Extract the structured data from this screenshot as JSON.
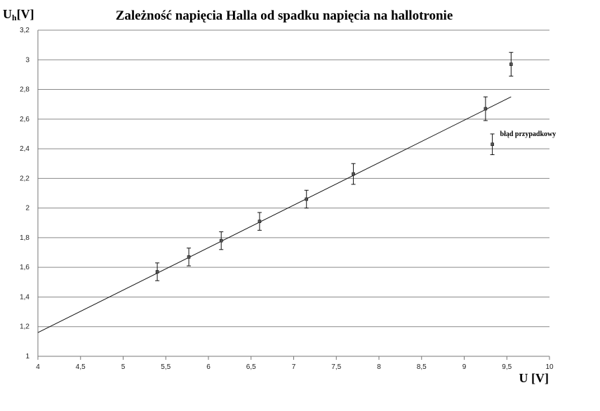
{
  "chart_data": {
    "type": "scatter",
    "title": "Zależność napięcia Halla od spadku napięcia na hallotronie",
    "xlabel": "U [V]",
    "ylabel_main": "U",
    "ylabel_sub": "h",
    "ylabel_unit": "[V]",
    "xlim": [
      4,
      10
    ],
    "ylim": [
      1,
      3.2
    ],
    "grid": "horizontal",
    "x_ticks": [
      "4",
      "4,5",
      "5",
      "5,5",
      "6",
      "6,5",
      "7",
      "7,5",
      "8",
      "8,5",
      "9",
      "9,5",
      "10"
    ],
    "y_ticks": [
      "1",
      "1,2",
      "1,4",
      "1,6",
      "1,8",
      "2",
      "2,2",
      "2,4",
      "2,6",
      "2,8",
      "3",
      "3,2"
    ],
    "series": [
      {
        "points": [
          {
            "x": 5.4,
            "y": 1.57,
            "err": 0.06
          },
          {
            "x": 5.77,
            "y": 1.67,
            "err": 0.06
          },
          {
            "x": 6.15,
            "y": 1.78,
            "err": 0.06
          },
          {
            "x": 6.6,
            "y": 1.91,
            "err": 0.06
          },
          {
            "x": 7.15,
            "y": 2.06,
            "err": 0.06
          },
          {
            "x": 7.7,
            "y": 2.23,
            "err": 0.07
          },
          {
            "x": 9.25,
            "y": 2.67,
            "err": 0.08
          },
          {
            "x": 9.33,
            "y": 2.43,
            "err": 0.07
          },
          {
            "x": 9.55,
            "y": 2.97,
            "err": 0.08
          }
        ]
      }
    ],
    "trendline": {
      "x1": 4,
      "y1": 1.16,
      "x2": 9.55,
      "y2": 2.75
    },
    "annotation": {
      "text": "błąd przypadkowy",
      "x": 9.42,
      "y": 2.5
    }
  }
}
